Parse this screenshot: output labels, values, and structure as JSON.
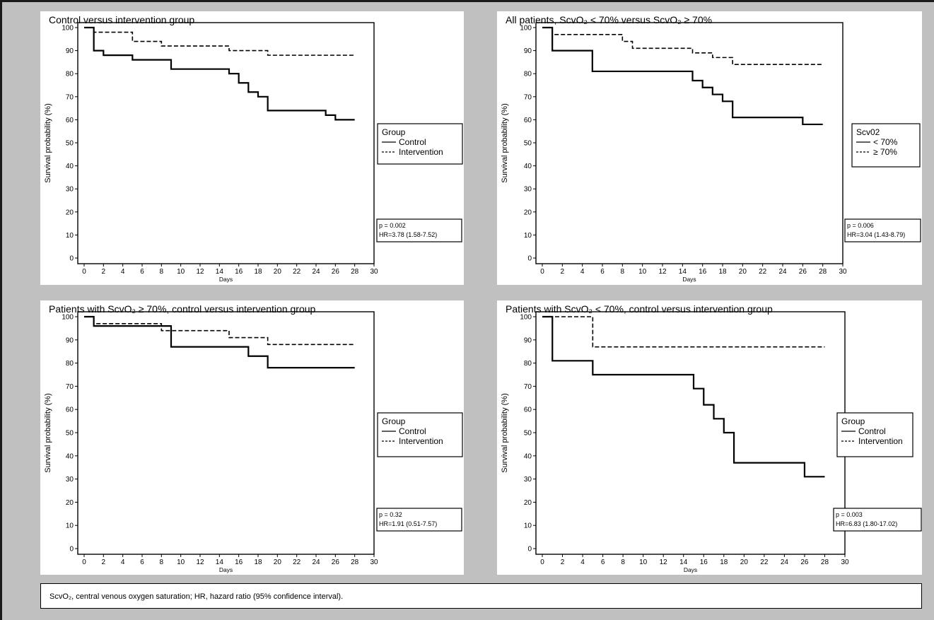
{
  "footnote": "ScvO₂, central venous oxygen saturation; HR, hazard ratio (95% confidence interval).",
  "chart_data": [
    {
      "type": "line",
      "step": true,
      "title": "Control versus intervention group",
      "xlabel": "Days",
      "ylabel": "Survival probability (%)",
      "xlim": [
        0,
        30
      ],
      "ylim": [
        0,
        100
      ],
      "xticks": [
        "0",
        "2",
        "4",
        "6",
        "8",
        "10",
        "12",
        "14",
        "16",
        "18",
        "20",
        "22",
        "24",
        "26",
        "28",
        "30"
      ],
      "yticks": [
        "0",
        "10",
        "20",
        "30",
        "40",
        "50",
        "60",
        "70",
        "80",
        "90",
        "100"
      ],
      "legend": {
        "title": "Group",
        "items": [
          "Control",
          "Intervention"
        ]
      },
      "stats": {
        "p": "p = 0.002",
        "hr": "HR=3.78 (1.58-7.52)"
      },
      "series": [
        {
          "name": "Control",
          "style": "solid",
          "x": [
            0,
            1,
            2,
            5,
            9,
            15,
            16,
            17,
            18,
            19,
            25,
            26,
            28
          ],
          "y": [
            100,
            90,
            88,
            86,
            82,
            80,
            76,
            72,
            70,
            64,
            62,
            60,
            60
          ]
        },
        {
          "name": "Intervention",
          "style": "dashed",
          "x": [
            0,
            1,
            5,
            8,
            15,
            19,
            28
          ],
          "y": [
            100,
            98,
            94,
            92,
            90,
            88,
            88
          ]
        }
      ]
    },
    {
      "type": "line",
      "step": true,
      "title": "All patients, ScvO₂ < 70% versus ScvO₂ ≥ 70%",
      "xlabel": "Days",
      "ylabel": "Survival probability (%)",
      "xlim": [
        0,
        30
      ],
      "ylim": [
        0,
        100
      ],
      "xticks": [
        "0",
        "2",
        "4",
        "6",
        "8",
        "10",
        "12",
        "14",
        "16",
        "18",
        "20",
        "22",
        "24",
        "26",
        "28",
        "30"
      ],
      "yticks": [
        "0",
        "10",
        "20",
        "30",
        "40",
        "50",
        "60",
        "70",
        "80",
        "90",
        "100"
      ],
      "legend": {
        "title": "Scv02",
        "items": [
          "< 70%",
          "≥ 70%"
        ]
      },
      "stats": {
        "p": "p = 0.006",
        "hr": "HR=3.04 (1.43-8.79)"
      },
      "series": [
        {
          "name": "< 70%",
          "style": "solid",
          "x": [
            0,
            1,
            5,
            15,
            16,
            17,
            18,
            19,
            26,
            28
          ],
          "y": [
            100,
            90,
            81,
            77,
            74,
            71,
            68,
            61,
            58,
            58
          ]
        },
        {
          "name": "≥ 70%",
          "style": "dashed",
          "x": [
            0,
            1,
            8,
            9,
            15,
            17,
            19,
            28
          ],
          "y": [
            100,
            97,
            94,
            91,
            89,
            87,
            84,
            84
          ]
        }
      ]
    },
    {
      "type": "line",
      "step": true,
      "title": "Patients with ScvO₂ ≥ 70%, control versus intervention group",
      "xlabel": "Days",
      "ylabel": "Survival probability (%)",
      "xlim": [
        0,
        30
      ],
      "ylim": [
        0,
        100
      ],
      "xticks": [
        "0",
        "2",
        "4",
        "6",
        "8",
        "10",
        "12",
        "14",
        "16",
        "18",
        "20",
        "22",
        "24",
        "26",
        "28",
        "30"
      ],
      "yticks": [
        "0",
        "10",
        "20",
        "30",
        "40",
        "50",
        "60",
        "70",
        "80",
        "90",
        "100"
      ],
      "legend": {
        "title": "Group",
        "items": [
          "Control",
          "Intervention"
        ]
      },
      "stats": {
        "p": "p = 0.32",
        "hr": "HR=1.91 (0.51-7.57)"
      },
      "series": [
        {
          "name": "Control",
          "style": "solid",
          "x": [
            0,
            1,
            9,
            17,
            19,
            28
          ],
          "y": [
            100,
            96,
            87,
            83,
            78,
            78
          ]
        },
        {
          "name": "Intervention",
          "style": "dashed",
          "x": [
            0,
            1,
            8,
            15,
            19,
            28
          ],
          "y": [
            100,
            97,
            94,
            91,
            88,
            88
          ]
        }
      ]
    },
    {
      "type": "line",
      "step": true,
      "title": "Patients with ScvO₂ < 70%, control versus intervention group",
      "xlabel": "Days",
      "ylabel": "Survival probability (%)",
      "xlim": [
        0,
        30
      ],
      "ylim": [
        0,
        100
      ],
      "xticks": [
        "0",
        "2",
        "4",
        "6",
        "8",
        "10",
        "12",
        "14",
        "16",
        "18",
        "20",
        "22",
        "24",
        "26",
        "28",
        "30"
      ],
      "yticks": [
        "0",
        "10",
        "20",
        "30",
        "40",
        "50",
        "60",
        "70",
        "80",
        "90",
        "100"
      ],
      "legend": {
        "title": "Group",
        "items": [
          "Control",
          "Intervention"
        ]
      },
      "stats": {
        "p": "p = 0.003",
        "hr": "HR=6.83 (1.80-17.02)"
      },
      "series": [
        {
          "name": "Control",
          "style": "solid",
          "x": [
            0,
            1,
            5,
            15,
            16,
            17,
            18,
            19,
            26,
            28
          ],
          "y": [
            100,
            81,
            75,
            69,
            62,
            56,
            50,
            37,
            31,
            31
          ]
        },
        {
          "name": "Intervention",
          "style": "dashed",
          "x": [
            0,
            5,
            28
          ],
          "y": [
            100,
            87,
            87
          ]
        }
      ]
    }
  ]
}
